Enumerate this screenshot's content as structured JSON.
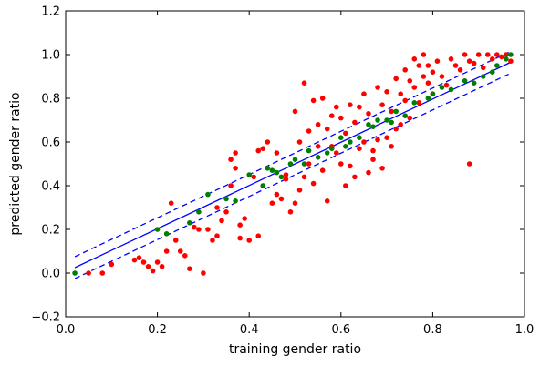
{
  "chart_data": {
    "type": "scatter",
    "title": "",
    "xlabel": "training gender ratio",
    "ylabel": "predicted gender ratio",
    "xlim": [
      0.0,
      1.0
    ],
    "ylim": [
      -0.2,
      1.2
    ],
    "xticks": [
      0.0,
      0.2,
      0.4,
      0.6,
      0.8,
      1.0
    ],
    "yticks": [
      -0.2,
      0.0,
      0.2,
      0.4,
      0.6,
      0.8,
      1.0,
      1.2
    ],
    "xtick_labels": [
      "0.0",
      "0.2",
      "0.4",
      "0.6",
      "0.8",
      "1.0"
    ],
    "ytick_labels": [
      "−0.2",
      "0.0",
      "0.2",
      "0.4",
      "0.6",
      "0.8",
      "1.0",
      "1.2"
    ],
    "grid": false,
    "lines": [
      {
        "style": "solid",
        "color": "#0000ff",
        "x": [
          0.02,
          0.97
        ],
        "y": [
          0.025,
          0.965
        ]
      },
      {
        "style": "dashed",
        "color": "#0000ff",
        "x": [
          0.02,
          0.97
        ],
        "y": [
          0.075,
          1.015
        ]
      },
      {
        "style": "dashed",
        "color": "#0000ff",
        "x": [
          0.02,
          0.97
        ],
        "y": [
          -0.025,
          0.915
        ]
      }
    ],
    "series": [
      {
        "color": "#ff0000",
        "points": [
          [
            0.05,
            0.0
          ],
          [
            0.08,
            0.0
          ],
          [
            0.1,
            0.04
          ],
          [
            0.15,
            0.06
          ],
          [
            0.16,
            0.07
          ],
          [
            0.17,
            0.05
          ],
          [
            0.18,
            0.03
          ],
          [
            0.19,
            0.01
          ],
          [
            0.2,
            0.05
          ],
          [
            0.21,
            0.03
          ],
          [
            0.22,
            0.1
          ],
          [
            0.23,
            0.32
          ],
          [
            0.24,
            0.15
          ],
          [
            0.25,
            0.1
          ],
          [
            0.26,
            0.08
          ],
          [
            0.27,
            0.02
          ],
          [
            0.28,
            0.21
          ],
          [
            0.29,
            0.2
          ],
          [
            0.3,
            0.0
          ],
          [
            0.31,
            0.2
          ],
          [
            0.32,
            0.15
          ],
          [
            0.33,
            0.17
          ],
          [
            0.33,
            0.3
          ],
          [
            0.34,
            0.24
          ],
          [
            0.35,
            0.28
          ],
          [
            0.36,
            0.4
          ],
          [
            0.36,
            0.52
          ],
          [
            0.37,
            0.55
          ],
          [
            0.37,
            0.48
          ],
          [
            0.38,
            0.22
          ],
          [
            0.38,
            0.16
          ],
          [
            0.39,
            0.25
          ],
          [
            0.4,
            0.15
          ],
          [
            0.41,
            0.44
          ],
          [
            0.42,
            0.56
          ],
          [
            0.42,
            0.17
          ],
          [
            0.43,
            0.4
          ],
          [
            0.43,
            0.57
          ],
          [
            0.44,
            0.6
          ],
          [
            0.45,
            0.32
          ],
          [
            0.46,
            0.36
          ],
          [
            0.46,
            0.55
          ],
          [
            0.47,
            0.34
          ],
          [
            0.48,
            0.43
          ],
          [
            0.48,
            0.45
          ],
          [
            0.49,
            0.28
          ],
          [
            0.5,
            0.74
          ],
          [
            0.5,
            0.32
          ],
          [
            0.51,
            0.38
          ],
          [
            0.51,
            0.6
          ],
          [
            0.52,
            0.44
          ],
          [
            0.52,
            0.87
          ],
          [
            0.53,
            0.5
          ],
          [
            0.53,
            0.65
          ],
          [
            0.54,
            0.79
          ],
          [
            0.54,
            0.41
          ],
          [
            0.55,
            0.68
          ],
          [
            0.55,
            0.58
          ],
          [
            0.56,
            0.8
          ],
          [
            0.56,
            0.47
          ],
          [
            0.57,
            0.66
          ],
          [
            0.57,
            0.33
          ],
          [
            0.58,
            0.58
          ],
          [
            0.58,
            0.72
          ],
          [
            0.59,
            0.55
          ],
          [
            0.59,
            0.76
          ],
          [
            0.6,
            0.71
          ],
          [
            0.6,
            0.5
          ],
          [
            0.61,
            0.64
          ],
          [
            0.61,
            0.4
          ],
          [
            0.62,
            0.49
          ],
          [
            0.62,
            0.77
          ],
          [
            0.63,
            0.44
          ],
          [
            0.63,
            0.69
          ],
          [
            0.64,
            0.57
          ],
          [
            0.64,
            0.76
          ],
          [
            0.65,
            0.6
          ],
          [
            0.65,
            0.82
          ],
          [
            0.66,
            0.46
          ],
          [
            0.66,
            0.73
          ],
          [
            0.67,
            0.52
          ],
          [
            0.67,
            0.56
          ],
          [
            0.68,
            0.61
          ],
          [
            0.68,
            0.85
          ],
          [
            0.69,
            0.48
          ],
          [
            0.69,
            0.77
          ],
          [
            0.7,
            0.62
          ],
          [
            0.7,
            0.83
          ],
          [
            0.71,
            0.58
          ],
          [
            0.71,
            0.74
          ],
          [
            0.72,
            0.89
          ],
          [
            0.72,
            0.66
          ],
          [
            0.73,
            0.68
          ],
          [
            0.73,
            0.82
          ],
          [
            0.74,
            0.79
          ],
          [
            0.74,
            0.93
          ],
          [
            0.75,
            0.71
          ],
          [
            0.75,
            0.88
          ],
          [
            0.76,
            0.98
          ],
          [
            0.76,
            0.85
          ],
          [
            0.77,
            0.95
          ],
          [
            0.77,
            0.78
          ],
          [
            0.78,
            0.9
          ],
          [
            0.78,
            1.0
          ],
          [
            0.79,
            0.87
          ],
          [
            0.79,
            0.95
          ],
          [
            0.8,
            0.92
          ],
          [
            0.8,
            0.82
          ],
          [
            0.81,
            0.97
          ],
          [
            0.82,
            0.9
          ],
          [
            0.83,
            0.86
          ],
          [
            0.84,
            0.98
          ],
          [
            0.85,
            0.95
          ],
          [
            0.86,
            0.93
          ],
          [
            0.87,
            1.0
          ],
          [
            0.88,
            0.5
          ],
          [
            0.88,
            0.97
          ],
          [
            0.89,
            0.96
          ],
          [
            0.9,
            1.0
          ],
          [
            0.91,
            0.94
          ],
          [
            0.92,
            1.0
          ],
          [
            0.93,
            0.98
          ],
          [
            0.94,
            1.0
          ],
          [
            0.95,
            0.99
          ],
          [
            0.96,
            1.0
          ],
          [
            0.97,
            0.97
          ]
        ]
      },
      {
        "color": "#007f00",
        "points": [
          [
            0.02,
            0.0
          ],
          [
            0.2,
            0.2
          ],
          [
            0.22,
            0.18
          ],
          [
            0.27,
            0.23
          ],
          [
            0.29,
            0.28
          ],
          [
            0.31,
            0.36
          ],
          [
            0.35,
            0.34
          ],
          [
            0.37,
            0.33
          ],
          [
            0.4,
            0.45
          ],
          [
            0.43,
            0.4
          ],
          [
            0.44,
            0.48
          ],
          [
            0.45,
            0.47
          ],
          [
            0.46,
            0.46
          ],
          [
            0.47,
            0.44
          ],
          [
            0.49,
            0.5
          ],
          [
            0.5,
            0.52
          ],
          [
            0.52,
            0.5
          ],
          [
            0.53,
            0.56
          ],
          [
            0.55,
            0.53
          ],
          [
            0.57,
            0.55
          ],
          [
            0.58,
            0.57
          ],
          [
            0.6,
            0.62
          ],
          [
            0.61,
            0.58
          ],
          [
            0.62,
            0.6
          ],
          [
            0.64,
            0.62
          ],
          [
            0.66,
            0.68
          ],
          [
            0.67,
            0.67
          ],
          [
            0.68,
            0.7
          ],
          [
            0.7,
            0.7
          ],
          [
            0.71,
            0.69
          ],
          [
            0.72,
            0.74
          ],
          [
            0.74,
            0.72
          ],
          [
            0.76,
            0.78
          ],
          [
            0.79,
            0.8
          ],
          [
            0.8,
            0.82
          ],
          [
            0.82,
            0.85
          ],
          [
            0.84,
            0.84
          ],
          [
            0.87,
            0.88
          ],
          [
            0.89,
            0.87
          ],
          [
            0.91,
            0.9
          ],
          [
            0.93,
            0.92
          ],
          [
            0.94,
            0.95
          ],
          [
            0.96,
            0.98
          ],
          [
            0.97,
            1.0
          ]
        ]
      }
    ]
  }
}
